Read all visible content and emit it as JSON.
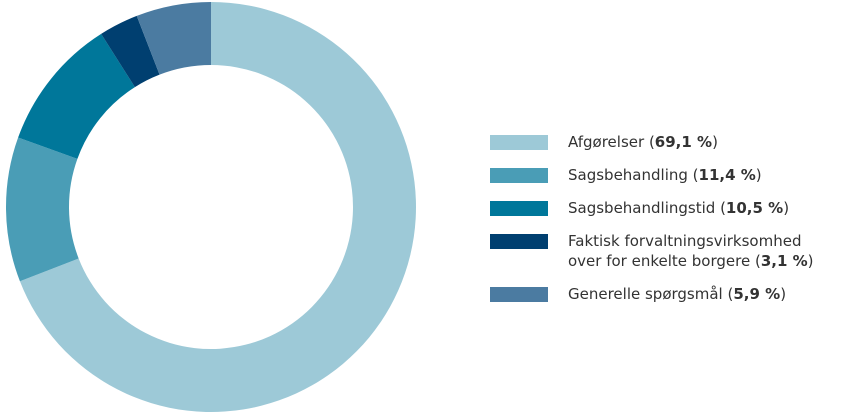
{
  "chart_data": {
    "type": "donut",
    "categories": [
      "Afgørelser",
      "Sagsbehandling",
      "Sagsbehandlingstid",
      "Faktisk forvaltningsvirksomhed over for enkelte borgere",
      "Generelle spørgsmål"
    ],
    "values": [
      69.1,
      11.4,
      10.5,
      3.1,
      5.9
    ],
    "value_labels": [
      "69,1 %",
      "11,4 %",
      "10,5 %",
      "3,1 %",
      "5,9 %"
    ],
    "colors": [
      "#9dc9d7",
      "#4a9db6",
      "#00779a",
      "#003f70",
      "#4b7ba1"
    ],
    "legend": "right"
  }
}
